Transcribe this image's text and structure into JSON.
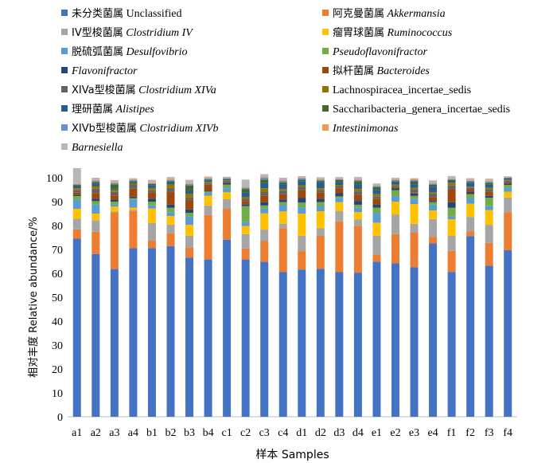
{
  "chart_data": {
    "type": "bar",
    "stacked": true,
    "categories": [
      "a1",
      "a2",
      "a3",
      "a4",
      "b1",
      "b2",
      "b3",
      "b4",
      "c1",
      "c2",
      "c3",
      "c4",
      "d1",
      "d2",
      "d3",
      "d4",
      "e1",
      "e2",
      "e3",
      "e4",
      "f1",
      "f2",
      "f3",
      "f4"
    ],
    "xlabel": "样本 Samples",
    "ylabel": "相对丰度 Relative abundance/%",
    "ylim": [
      0,
      100
    ],
    "yticks": [
      0,
      10,
      20,
      30,
      40,
      50,
      60,
      70,
      80,
      90,
      100
    ],
    "grid": false,
    "legend_position": "top",
    "series": [
      {
        "name_zh": "未分类菌属",
        "name_en": "Unclassified",
        "italic": false,
        "color": "#4472c4",
        "values": [
          74.5,
          68.1,
          61.8,
          70.6,
          70.6,
          71.4,
          66.6,
          65.8,
          74.1,
          65.8,
          64.8,
          60.5,
          61.6,
          61.9,
          60.5,
          60.3,
          64.9,
          64.2,
          62.6,
          72.6,
          60.6,
          75.6,
          63.2,
          69.7
        ]
      },
      {
        "name_zh": "阿克曼菌属",
        "name_en": "Akkermansia",
        "italic": true,
        "color": "#ed7d31",
        "values": [
          3.9,
          9.3,
          23.7,
          15.5,
          3.1,
          5.3,
          4.2,
          18.6,
          12.9,
          4.6,
          8.7,
          18.4,
          7.7,
          13.9,
          21.2,
          19.6,
          2.9,
          12.2,
          14.4,
          2.6,
          8.8,
          1.9,
          9.5,
          15.9
        ]
      },
      {
        "name_zh": "IV型梭菌属",
        "name_en": "Clostridium IV",
        "italic": true,
        "color": "#a5a5a5",
        "values": [
          4.5,
          4.8,
          0.4,
          0.4,
          7.3,
          3.7,
          4.9,
          3.9,
          4.1,
          6.0,
          4.8,
          1.8,
          6.4,
          3.1,
          4.3,
          2.6,
          7.9,
          8.1,
          3.7,
          7.5,
          6.3,
          6.1,
          7.6,
          6.1
        ]
      },
      {
        "name_zh": "瘤胃球菌属",
        "name_en": "Ruminococcus",
        "italic": true,
        "color": "#ffc000",
        "values": [
          4.1,
          2.8,
          2.0,
          1.0,
          6.1,
          3.6,
          4.6,
          4.2,
          2.8,
          3.4,
          6.8,
          5.2,
          9.3,
          7.1,
          3.8,
          3.1,
          5.5,
          5.5,
          8.3,
          3.6,
          6.9,
          5.5,
          6.2,
          2.4
        ]
      },
      {
        "name_zh": "脱硫弧菌属",
        "name_en": "Desulfovibrio",
        "italic": true,
        "color": "#5b9bd5",
        "values": [
          3.7,
          3.8,
          0.8,
          3.4,
          1.3,
          1.6,
          3.4,
          1.2,
          1.7,
          1.6,
          2.0,
          2.6,
          2.6,
          2.0,
          1.8,
          1.8,
          4.1,
          2.3,
          2.1,
          2.4,
          1.2,
          2.4,
          1.6,
          1.6
        ]
      },
      {
        "name_zh": "",
        "name_en": "Pseudoflavonifractor",
        "italic": true,
        "color": "#70ad47",
        "values": [
          1.6,
          1.4,
          1.3,
          0.6,
          1.6,
          1.8,
          1.6,
          0.5,
          1.5,
          6.7,
          1.3,
          1.3,
          2.0,
          1.8,
          0.6,
          1.3,
          2.2,
          2.5,
          1.3,
          1.1,
          3.6,
          1.6,
          3.5,
          1.3
        ]
      },
      {
        "name_zh": "",
        "name_en": "Flavonifractor",
        "italic": true,
        "color": "#264478",
        "values": [
          0.5,
          1.0,
          0.8,
          0.6,
          1.2,
          1.3,
          1.4,
          0.3,
          0.8,
          0.8,
          1.3,
          1.1,
          1.9,
          1.4,
          1.3,
          1.6,
          1.3,
          0.7,
          1.0,
          0.5,
          2.3,
          0.9,
          0.8,
          0.6
        ]
      },
      {
        "name_zh": "拟杆菌属",
        "name_en": "Bacteroides",
        "italic": true,
        "color": "#9e480e",
        "values": [
          1.0,
          2.4,
          1.8,
          3.3,
          2.5,
          5.5,
          4.0,
          2.6,
          0.3,
          1.4,
          2.9,
          2.2,
          3.2,
          2.7,
          2.1,
          2.6,
          2.3,
          0.4,
          0.5,
          1.5,
          5.6,
          1.0,
          1.7,
          0.6
        ]
      },
      {
        "name_zh": "XIVa型梭菌属",
        "name_en": "Clostridium XIVa",
        "italic": true,
        "color": "#636363",
        "values": [
          1.0,
          1.8,
          1.5,
          1.6,
          1.0,
          1.5,
          1.0,
          0.8,
          0.5,
          1.0,
          1.4,
          1.5,
          1.3,
          0.9,
          0.9,
          1.4,
          1.0,
          0.7,
          1.3,
          1.5,
          1.6,
          0.9,
          1.1,
          0.7
        ]
      },
      {
        "name_zh": "",
        "name_en": "Lachnospiracea_incertae_sedis",
        "italic": false,
        "color": "#997300",
        "values": [
          0.8,
          1.1,
          0.8,
          0.5,
          1.0,
          1.5,
          1.5,
          0.4,
          0.3,
          0.7,
          1.6,
          0.7,
          0.8,
          0.8,
          0.5,
          1.0,
          1.0,
          0.5,
          0.6,
          0.6,
          1.0,
          0.4,
          0.6,
          0.2
        ]
      },
      {
        "name_zh": "理研菌属",
        "name_en": "Alistipes",
        "italic": true,
        "color": "#255e91",
        "values": [
          1.1,
          1.1,
          0.5,
          0.3,
          1.2,
          0.8,
          1.3,
          0.6,
          0.4,
          1.8,
          2.1,
          2.0,
          1.8,
          2.5,
          1.2,
          2.0,
          1.8,
          1.1,
          1.5,
          2.2,
          0.6,
          1.6,
          1.3,
          0.4
        ]
      },
      {
        "name_zh": "",
        "name_en": "Saccharibacteria_genera_incertae_sedis",
        "italic": false,
        "color": "#43682b",
        "values": [
          0.3,
          0.6,
          1.8,
          0.7,
          0.5,
          0.6,
          2.3,
          0.4,
          0.2,
          1.5,
          1.5,
          0.8,
          0.6,
          0.6,
          0.8,
          1.2,
          1.1,
          0.4,
          1.2,
          0.9,
          0.5,
          0.4,
          0.8,
          0.4
        ]
      },
      {
        "name_zh": "XIVb型梭菌属",
        "name_en": "Clostridium XIVb",
        "italic": true,
        "color": "#698ed0",
        "values": [
          0.3,
          0.6,
          0.6,
          0.5,
          0.3,
          0.5,
          0.6,
          0.3,
          0.2,
          0.6,
          0.9,
          0.7,
          0.6,
          0.5,
          0.4,
          0.5,
          0.5,
          0.4,
          0.5,
          0.6,
          0.4,
          0.4,
          0.4,
          0.2
        ]
      },
      {
        "name_zh": "",
        "name_en": "Intestinimonas",
        "italic": true,
        "color": "#f1975a",
        "values": [
          0.3,
          0.4,
          0.4,
          0.3,
          0.4,
          0.4,
          0.5,
          0.4,
          0.2,
          0.3,
          0.4,
          0.4,
          0.3,
          0.4,
          0.3,
          0.3,
          0.3,
          0.4,
          0.5,
          0.3,
          0.4,
          0.3,
          0.4,
          0.2
        ]
      },
      {
        "name_zh": "",
        "name_en": "Barnesiella",
        "italic": true,
        "color": "#b7b7b7",
        "values": [
          6.4,
          0.8,
          0.8,
          0.5,
          1.0,
          0.8,
          1.2,
          0.5,
          0.4,
          3.0,
          1.0,
          0.8,
          0.6,
          0.6,
          0.6,
          1.0,
          0.8,
          0.6,
          0.3,
          1.0,
          0.9,
          0.8,
          0.9,
          0.3
        ]
      }
    ]
  }
}
